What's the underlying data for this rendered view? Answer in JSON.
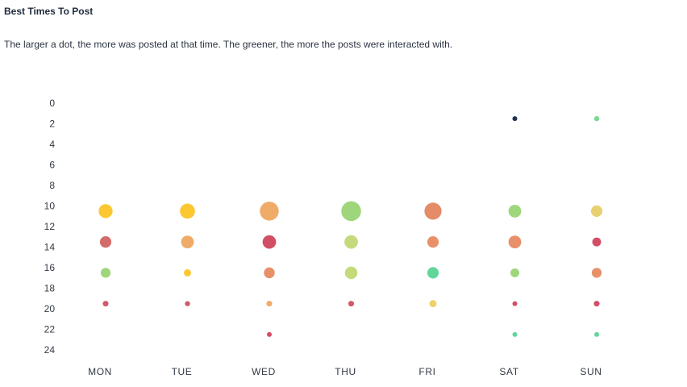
{
  "header": {
    "title": "Best Times To Post",
    "subtitle": "The larger a dot, the more was posted at that time. The greener, the more the posts were interacted with."
  },
  "chart_data": {
    "type": "scatter",
    "title": "Best Times To Post",
    "subtitle": "The larger a dot, the more was posted at that time. The greener, the more the posts were interacted with.",
    "x_categories": [
      "MON",
      "TUE",
      "WED",
      "THU",
      "FRI",
      "SAT",
      "SUN"
    ],
    "y_ticks": [
      0,
      2,
      4,
      6,
      8,
      10,
      12,
      14,
      16,
      18,
      20,
      22,
      24
    ],
    "ylim": [
      0,
      24
    ],
    "y_inverted": true,
    "grid": false,
    "encoding": {
      "size": "amount posted",
      "color": "interaction (greener = more)"
    },
    "points": [
      {
        "day": "MON",
        "hour": 10.5,
        "size": 3,
        "color": "#fcc832"
      },
      {
        "day": "MON",
        "hour": 13.5,
        "size": 2,
        "color": "#d46a6a"
      },
      {
        "day": "MON",
        "hour": 16.5,
        "size": 1.5,
        "color": "#9fd67b"
      },
      {
        "day": "MON",
        "hour": 19.5,
        "size": 0.5,
        "color": "#d2586a"
      },
      {
        "day": "TUE",
        "hour": 10.5,
        "size": 3.5,
        "color": "#fcc832"
      },
      {
        "day": "TUE",
        "hour": 13.5,
        "size": 2.5,
        "color": "#f0ab68"
      },
      {
        "day": "TUE",
        "hour": 16.5,
        "size": 0.8,
        "color": "#fcc832"
      },
      {
        "day": "TUE",
        "hour": 19.5,
        "size": 0.4,
        "color": "#d2586a"
      },
      {
        "day": "WED",
        "hour": 10.5,
        "size": 5.5,
        "color": "#f0ab68"
      },
      {
        "day": "WED",
        "hour": 13.5,
        "size": 2.8,
        "color": "#d24e64"
      },
      {
        "day": "WED",
        "hour": 16.5,
        "size": 1.8,
        "color": "#e8906a"
      },
      {
        "day": "WED",
        "hour": 19.5,
        "size": 0.5,
        "color": "#f0ab68"
      },
      {
        "day": "WED",
        "hour": 22.5,
        "size": 0.3,
        "color": "#d24e64"
      },
      {
        "day": "THU",
        "hour": 10.5,
        "size": 6,
        "color": "#9fd67b"
      },
      {
        "day": "THU",
        "hour": 13.5,
        "size": 2.8,
        "color": "#c5da7a"
      },
      {
        "day": "THU",
        "hour": 16.5,
        "size": 2.4,
        "color": "#c5da7a"
      },
      {
        "day": "THU",
        "hour": 19.5,
        "size": 0.5,
        "color": "#d2586a"
      },
      {
        "day": "FRI",
        "hour": 10.5,
        "size": 4.5,
        "color": "#e48b68"
      },
      {
        "day": "FRI",
        "hour": 13.5,
        "size": 2,
        "color": "#e8906a"
      },
      {
        "day": "FRI",
        "hour": 16.5,
        "size": 2,
        "color": "#62d699"
      },
      {
        "day": "FRI",
        "hour": 19.5,
        "size": 0.8,
        "color": "#f0d068"
      },
      {
        "day": "SAT",
        "hour": 1.5,
        "size": 0.3,
        "color": "#1e3354"
      },
      {
        "day": "SAT",
        "hour": 10.5,
        "size": 2.5,
        "color": "#9fd67b"
      },
      {
        "day": "SAT",
        "hour": 13.5,
        "size": 2.5,
        "color": "#e8906a"
      },
      {
        "day": "SAT",
        "hour": 16.5,
        "size": 1.2,
        "color": "#9fd67b"
      },
      {
        "day": "SAT",
        "hour": 19.5,
        "size": 0.3,
        "color": "#d24e64"
      },
      {
        "day": "SAT",
        "hour": 22.5,
        "size": 0.25,
        "color": "#62d699"
      },
      {
        "day": "SUN",
        "hour": 1.5,
        "size": 0.4,
        "color": "#7ad994"
      },
      {
        "day": "SUN",
        "hour": 10.5,
        "size": 2,
        "color": "#e8d070"
      },
      {
        "day": "SUN",
        "hour": 13.5,
        "size": 1.2,
        "color": "#d24e64"
      },
      {
        "day": "SUN",
        "hour": 16.5,
        "size": 1.5,
        "color": "#e8906a"
      },
      {
        "day": "SUN",
        "hour": 19.5,
        "size": 0.5,
        "color": "#d24e64"
      },
      {
        "day": "SUN",
        "hour": 22.5,
        "size": 0.3,
        "color": "#62d699"
      }
    ]
  }
}
